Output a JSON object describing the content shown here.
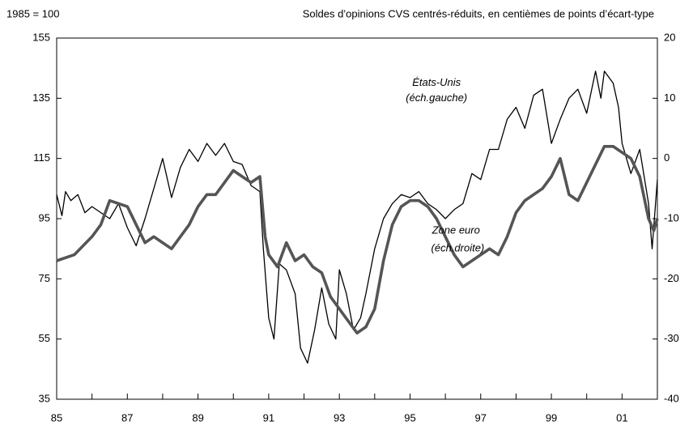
{
  "chart_data": {
    "type": "line",
    "ylabel": "1985 = 100",
    "y2label": "Soldes d’opinions CVS centrés-réduits, en centièmes de points d’écart-type",
    "annotations": [
      {
        "text": "États-Unis",
        "x": 1995.75,
        "y": 140
      },
      {
        "text": "(éch.gauche)",
        "x": 1995.75,
        "y": 135
      },
      {
        "text": "Zone euro",
        "x": 1996.3,
        "y": 91
      },
      {
        "text": "(éch.droite)",
        "x": 1996.35,
        "y": 85
      }
    ],
    "xlim": [
      1985,
      2002
    ],
    "xticks": [
      {
        "value": 1985,
        "label": "85"
      },
      {
        "value": 1987,
        "label": "87"
      },
      {
        "value": 1989,
        "label": "89"
      },
      {
        "value": 1991,
        "label": "91"
      },
      {
        "value": 1993,
        "label": "93"
      },
      {
        "value": 1995,
        "label": "95"
      },
      {
        "value": 1997,
        "label": "97"
      },
      {
        "value": 1999,
        "label": "99"
      },
      {
        "value": 2001,
        "label": "01"
      }
    ],
    "xminorticks": [
      1986,
      1988,
      1990,
      1992,
      1994,
      1996,
      1998,
      2000
    ],
    "ylim": [
      35,
      155
    ],
    "yticks": [
      35,
      55,
      75,
      95,
      115,
      135,
      155
    ],
    "y2lim": [
      -40,
      20
    ],
    "y2ticks": [
      -40,
      -30,
      -20,
      -10,
      0,
      10,
      20
    ],
    "series": [
      {
        "name": "États-Unis",
        "color": "#000000",
        "width": 1.3,
        "x": [
          1985,
          1985.15,
          1985.25,
          1985.4,
          1985.6,
          1985.8,
          1986,
          1986.25,
          1986.5,
          1986.75,
          1987,
          1987.25,
          1987.5,
          1987.75,
          1988,
          1988.25,
          1988.5,
          1988.75,
          1989,
          1989.25,
          1989.5,
          1989.75,
          1990,
          1990.25,
          1990.5,
          1990.75,
          1990.85,
          1991,
          1991.15,
          1991.3,
          1991.5,
          1991.75,
          1991.9,
          1992.1,
          1992.3,
          1992.5,
          1992.7,
          1992.9,
          1993,
          1993.2,
          1993.4,
          1993.6,
          1993.75,
          1994,
          1994.25,
          1994.5,
          1994.75,
          1995,
          1995.25,
          1995.5,
          1995.75,
          1996,
          1996.25,
          1996.5,
          1996.75,
          1997,
          1997.25,
          1997.5,
          1997.75,
          1998,
          1998.25,
          1998.5,
          1998.75,
          1999,
          1999.25,
          1999.5,
          1999.75,
          2000,
          2000.25,
          2000.4,
          2000.5,
          2000.75,
          2000.9,
          2001,
          2001.25,
          2001.5,
          2001.75,
          2001.85,
          2002
        ],
        "values": [
          103,
          96,
          104,
          101,
          103,
          97,
          99,
          97,
          95,
          100,
          92,
          86,
          95,
          105,
          115,
          102,
          112,
          118,
          114,
          120,
          116,
          120,
          114,
          113,
          106,
          104,
          85,
          62,
          55,
          80,
          78,
          70,
          52,
          47,
          58,
          72,
          60,
          55,
          78,
          70,
          58,
          62,
          70,
          85,
          95,
          100,
          103,
          102,
          104,
          100,
          98,
          95,
          98,
          100,
          110,
          108,
          118,
          118,
          128,
          132,
          125,
          136,
          138,
          120,
          128,
          135,
          138,
          130,
          144,
          135,
          144,
          140,
          132,
          120,
          110,
          118,
          100,
          85,
          108
        ]
      },
      {
        "name": "Zone euro",
        "color": "#555555",
        "width": 3.6,
        "axis": "y2",
        "x": [
          1985,
          1985.5,
          1986,
          1986.25,
          1986.5,
          1987,
          1987.25,
          1987.5,
          1987.75,
          1988,
          1988.25,
          1988.5,
          1988.75,
          1989,
          1989.25,
          1989.5,
          1989.75,
          1990,
          1990.25,
          1990.5,
          1990.75,
          1990.9,
          1991,
          1991.25,
          1991.5,
          1991.75,
          1992,
          1992.25,
          1992.5,
          1992.75,
          1993,
          1993.25,
          1993.5,
          1993.75,
          1994,
          1994.25,
          1994.5,
          1994.75,
          1995,
          1995.25,
          1995.5,
          1995.75,
          1996,
          1996.25,
          1996.5,
          1996.75,
          1997,
          1997.25,
          1997.5,
          1997.75,
          1998,
          1998.25,
          1998.5,
          1998.75,
          1999,
          1999.25,
          1999.5,
          1999.75,
          2000,
          2000.25,
          2000.5,
          2000.75,
          2001,
          2001.25,
          2001.5,
          2001.75,
          2001.9,
          2002
        ],
        "values": [
          -17,
          -16,
          -13,
          -11,
          -7,
          -8,
          -11,
          -14,
          -13,
          -14,
          -15,
          -13,
          -11,
          -8,
          -6,
          -6,
          -4,
          -2,
          -3,
          -4,
          -3,
          -13,
          -16,
          -18,
          -14,
          -17,
          -16,
          -18,
          -19,
          -23,
          -25,
          -27,
          -29,
          -28,
          -25,
          -17,
          -11,
          -8,
          -7,
          -7,
          -8,
          -10,
          -13,
          -16,
          -18,
          -17,
          -16,
          -15,
          -16,
          -13,
          -9,
          -7,
          -6,
          -5,
          -3,
          0,
          -6,
          -7,
          -4,
          -1,
          2,
          2,
          1,
          0,
          -3,
          -10,
          -12,
          -10
        ]
      }
    ]
  }
}
